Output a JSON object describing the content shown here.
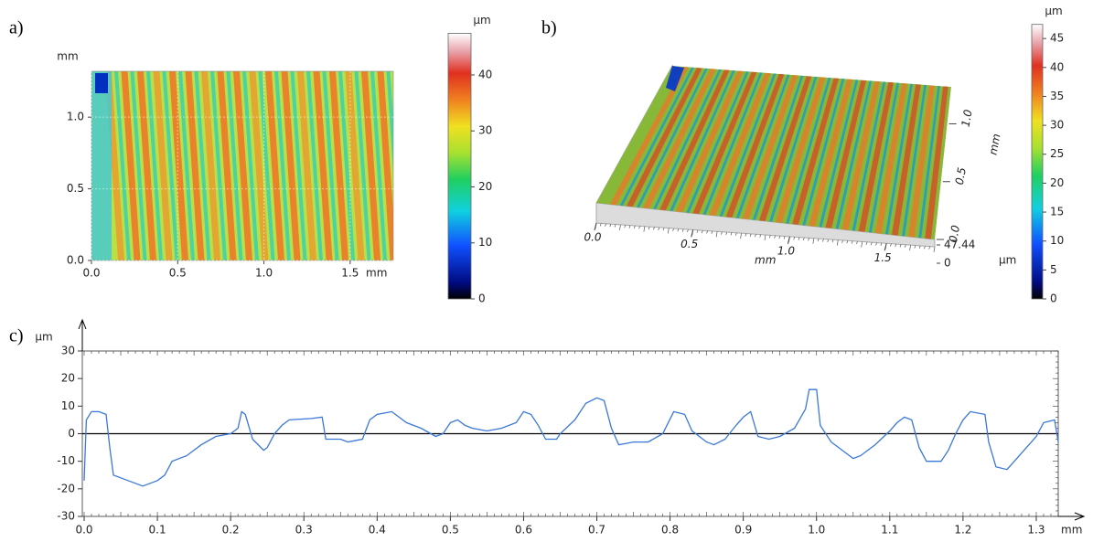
{
  "chart_data": [
    {
      "type": "heatmap",
      "panel_label": "a)",
      "x_label": "mm",
      "y_label": "mm",
      "xlim": [
        0,
        1.75
      ],
      "ylim": [
        0,
        1.32
      ],
      "xticks": [
        {
          "value": 0,
          "label": "0.0"
        },
        0.5,
        {
          "value": 1,
          "label": "1.0"
        },
        1.5
      ],
      "yticks": [
        {
          "value": 0,
          "label": "0.0"
        },
        0.5,
        {
          "value": 1,
          "label": "1.0"
        }
      ],
      "grid": true,
      "colorbar": {
        "title": "µm",
        "lim": [
          0,
          47.44
        ],
        "ticks": [
          0,
          10,
          20,
          30,
          40
        ]
      }
    },
    {
      "type": "surface3d",
      "panel_label": "b)",
      "x_label": "mm",
      "y_label": "mm",
      "z_label": "µm",
      "xlim": [
        0,
        1.75
      ],
      "ylim": [
        0,
        1.32
      ],
      "zlim": [
        0,
        47.44
      ],
      "xticks": [
        {
          "value": 0,
          "label": "0.0"
        },
        0.5,
        {
          "value": 1,
          "label": "1.0"
        },
        1.5
      ],
      "yticks": [
        {
          "value": 0,
          "label": "0.0"
        },
        0.5,
        {
          "value": 1,
          "label": "1.0"
        }
      ],
      "zticks": [
        0,
        47.44
      ],
      "colorbar": {
        "title": "µm",
        "lim": [
          0,
          47.44
        ],
        "ticks": [
          0,
          5,
          10,
          15,
          20,
          25,
          30,
          35,
          40,
          45
        ]
      }
    },
    {
      "type": "line",
      "panel_label": "c)",
      "x_label": "mm",
      "y_label": "µm",
      "color": "#3a78d8",
      "xlim": [
        0,
        1.33
      ],
      "ylim": [
        -30,
        30
      ],
      "xticks": [
        {
          "value": 0,
          "label": "0.0"
        },
        0.1,
        0.2,
        0.3,
        0.4,
        0.5,
        0.6,
        0.7,
        0.8,
        0.9,
        {
          "value": 1,
          "label": "1.0"
        },
        1.1,
        1.2,
        1.3
      ],
      "yticks": [
        -30,
        -20,
        -10,
        0,
        10,
        20,
        30
      ],
      "x": [
        0,
        0.003,
        0.01,
        0.02,
        0.03,
        0.035,
        0.04,
        0.05,
        0.07,
        0.08,
        0.09,
        0.1,
        0.11,
        0.12,
        0.14,
        0.16,
        0.18,
        0.2,
        0.21,
        0.215,
        0.22,
        0.23,
        0.245,
        0.25,
        0.26,
        0.27,
        0.28,
        0.31,
        0.325,
        0.33,
        0.35,
        0.36,
        0.38,
        0.39,
        0.4,
        0.42,
        0.43,
        0.44,
        0.46,
        0.48,
        0.49,
        0.5,
        0.51,
        0.52,
        0.53,
        0.55,
        0.57,
        0.59,
        0.6,
        0.61,
        0.62,
        0.63,
        0.645,
        0.65,
        0.67,
        0.685,
        0.7,
        0.71,
        0.72,
        0.73,
        0.75,
        0.77,
        0.79,
        0.805,
        0.82,
        0.83,
        0.85,
        0.86,
        0.875,
        0.89,
        0.9,
        0.91,
        0.92,
        0.935,
        0.95,
        0.97,
        0.985,
        0.99,
        1.0,
        1.005,
        1.02,
        1.04,
        1.05,
        1.06,
        1.08,
        1.1,
        1.11,
        1.12,
        1.13,
        1.14,
        1.15,
        1.17,
        1.18,
        1.19,
        1.2,
        1.21,
        1.23,
        1.235,
        1.245,
        1.26,
        1.27,
        1.28,
        1.3,
        1.31,
        1.325,
        1.33
      ],
      "values": [
        -17,
        5,
        8,
        8,
        7,
        -5,
        -15,
        -16,
        -18,
        -19,
        -18,
        -17,
        -15,
        -10,
        -8,
        -4,
        -1,
        0,
        2,
        8,
        7,
        -2,
        -6,
        -5,
        0,
        3,
        5,
        5.5,
        6,
        -2,
        -2,
        -3,
        -2,
        5,
        7,
        8,
        6,
        4,
        2,
        -1,
        0,
        4,
        5,
        3,
        2,
        1,
        2,
        4,
        8,
        7,
        3,
        -2,
        -2,
        0,
        5,
        11,
        13,
        12,
        2,
        -4,
        -3,
        -3,
        0,
        8,
        7,
        1,
        -3,
        -4,
        -2,
        3,
        6,
        8,
        -1,
        -2,
        -1,
        2,
        9,
        16,
        16,
        3,
        -3,
        -7,
        -9,
        -8,
        -4,
        1,
        4,
        6,
        5,
        -5,
        -10,
        -10,
        -6,
        0,
        5,
        8,
        7,
        -3,
        -12,
        -13,
        -10,
        -7,
        -1,
        4,
        5,
        -3
      ]
    }
  ]
}
